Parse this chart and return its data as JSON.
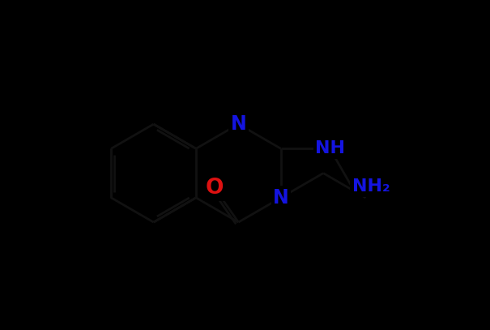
{
  "bg_color": "#000000",
  "bond_color": "#1a1a1a",
  "N_color": "#1414e0",
  "O_color": "#dd1111",
  "label_N": "N",
  "label_NH": "NH",
  "label_NH2": "NH₂",
  "label_O": "O",
  "lw": 2.0,
  "fs": 16,
  "fig_width": 6.05,
  "fig_height": 4.07,
  "dpi": 100,
  "xlim": [
    0,
    12
  ],
  "ylim": [
    0,
    8
  ]
}
